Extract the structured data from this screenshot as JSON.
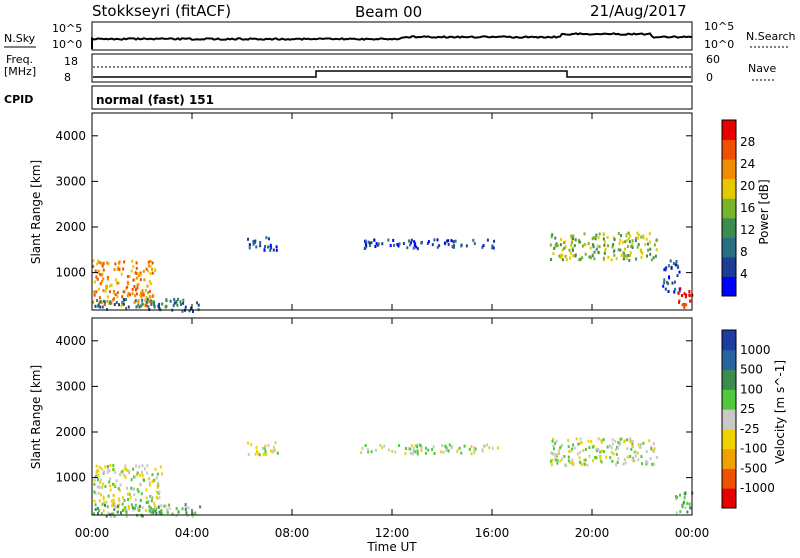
{
  "header": {
    "station": "Stokkseyri (fitACF)",
    "beam": "Beam 00",
    "date": "21/Aug/2017"
  },
  "noise_panel": {
    "left_label": "N.Sky",
    "left_ticks": [
      "10^5",
      "10^0"
    ],
    "right_label": "N.Search",
    "right_ticks": [
      "10^5",
      "10^0"
    ]
  },
  "freq_panel": {
    "left_label_line1": "Freq.",
    "left_label_line2": "[MHz]",
    "left_ticks": [
      "18",
      "8"
    ],
    "right_label": "Nave",
    "right_ticks": [
      "60",
      "0"
    ]
  },
  "cpid_panel": {
    "label": "CPID",
    "mode": "normal (fast) 151"
  },
  "colors": {
    "power_scale": [
      "#0000ff",
      "#1e3c96",
      "#2a6e82",
      "#3c8c50",
      "#78b428",
      "#e6c800",
      "#f08c00",
      "#f05000",
      "#e60000"
    ],
    "velocity_scale": [
      "#1e3ca0",
      "#2864a0",
      "#3c8c50",
      "#50c83c",
      "#c8c8c8",
      "#f0d200",
      "#f0a000",
      "#f05000",
      "#e60000"
    ]
  },
  "chart_data": [
    {
      "type": "heatmap",
      "quantity": "Power",
      "ylabel": "Slant Range [km]",
      "xlabel": "",
      "ylim": [
        180,
        4500
      ],
      "xlim": [
        0,
        24
      ],
      "y_ticks": [
        1000,
        2000,
        3000,
        4000
      ],
      "colorbar_label": "Power [dB]",
      "colorbar_ticks": [
        "4",
        "8",
        "12",
        "16",
        "20",
        "24",
        "28"
      ],
      "echo_regions": [
        {
          "t": [
            0.0,
            2.5
          ],
          "r": [
            300,
            1300
          ],
          "level": 6
        },
        {
          "t": [
            0.0,
            4.3
          ],
          "r": [
            180,
            450
          ],
          "level": 2
        },
        {
          "t": [
            6.2,
            7.4
          ],
          "r": [
            1500,
            1800
          ],
          "level": 1
        },
        {
          "t": [
            10.7,
            16.2
          ],
          "r": [
            1550,
            1750
          ],
          "level": 1
        },
        {
          "t": [
            18.3,
            22.6
          ],
          "r": [
            1300,
            1900
          ],
          "level": 4
        },
        {
          "t": [
            22.8,
            23.5
          ],
          "r": [
            600,
            1300
          ],
          "level": 1
        },
        {
          "t": [
            23.3,
            24.0
          ],
          "r": [
            250,
            700
          ],
          "level": 8
        }
      ]
    },
    {
      "type": "heatmap",
      "quantity": "Velocity",
      "ylabel": "Slant Range [km]",
      "xlabel": "Time UT",
      "ylim": [
        180,
        4500
      ],
      "xlim": [
        0,
        24
      ],
      "y_ticks": [
        1000,
        2000,
        3000,
        4000
      ],
      "x_tick_labels": [
        "00:00",
        "04:00",
        "08:00",
        "12:00",
        "16:00",
        "20:00",
        "00:00"
      ],
      "colorbar_label": "Velocity [m s^-1]",
      "colorbar_ticks": [
        "1000",
        "500",
        "100",
        "25",
        "-25",
        "-100",
        "-500",
        "-1000"
      ],
      "echo_regions": [
        {
          "t": [
            0.0,
            2.8
          ],
          "r": [
            300,
            1300
          ],
          "level": 4
        },
        {
          "t": [
            0.0,
            4.3
          ],
          "r": [
            180,
            450
          ],
          "level": 3
        },
        {
          "t": [
            6.2,
            7.4
          ],
          "r": [
            1500,
            1800
          ],
          "level": 4
        },
        {
          "t": [
            10.7,
            16.2
          ],
          "r": [
            1550,
            1750
          ],
          "level": 4
        },
        {
          "t": [
            18.3,
            22.6
          ],
          "r": [
            1300,
            1900
          ],
          "level": 4
        },
        {
          "t": [
            23.3,
            24.0
          ],
          "r": [
            250,
            700
          ],
          "level": 3
        }
      ]
    }
  ]
}
